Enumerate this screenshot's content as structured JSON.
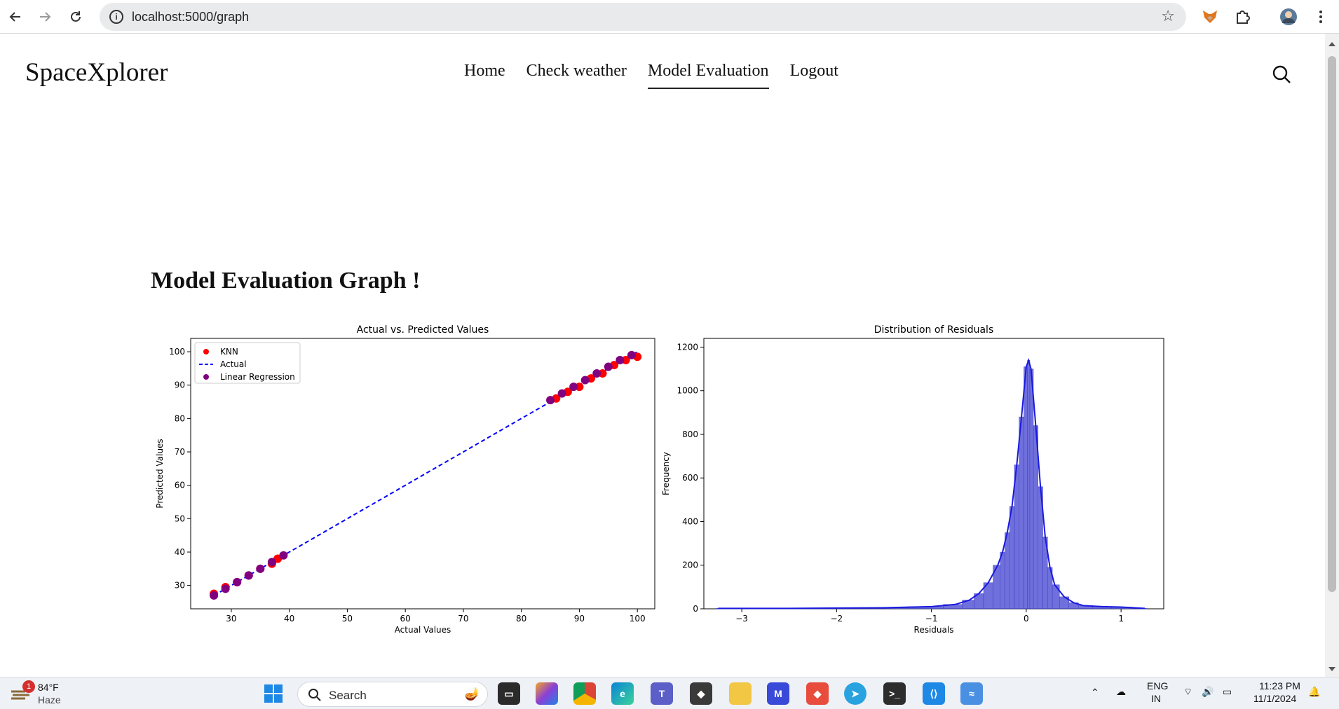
{
  "browser": {
    "url": "localhost:5000/graph"
  },
  "site": {
    "logo": "SpaceXplorer",
    "menu": [
      {
        "label": "Home",
        "active": false
      },
      {
        "label": "Check weather",
        "active": false
      },
      {
        "label": "Model Evaluation",
        "active": true
      },
      {
        "label": "Logout",
        "active": false
      }
    ]
  },
  "page": {
    "heading": "Model Evaluation Graph !"
  },
  "chart_data": [
    {
      "type": "scatter",
      "title": "Actual vs. Predicted Values",
      "xlabel": "Actual Values",
      "ylabel": "Predicted Values",
      "xlim": [
        23,
        103
      ],
      "ylim": [
        23,
        104
      ],
      "xticks": [
        30,
        40,
        50,
        60,
        70,
        80,
        90,
        100
      ],
      "yticks": [
        30,
        40,
        50,
        60,
        70,
        80,
        90,
        100
      ],
      "legend_position": "upper-left",
      "series": [
        {
          "name": "KNN",
          "kind": "scatter",
          "color": "#ff0000",
          "x": [
            27,
            29,
            31,
            33,
            35,
            37,
            38,
            86,
            88,
            90,
            92,
            94,
            96,
            98,
            100
          ],
          "y": [
            27.5,
            29.5,
            31,
            33,
            35,
            36.5,
            38,
            86,
            88,
            89.5,
            92,
            93.5,
            96,
            97.5,
            98.5
          ]
        },
        {
          "name": "Actual",
          "kind": "line",
          "style": "dashed",
          "color": "#0000ff",
          "x": [
            27,
            100
          ],
          "y": [
            27,
            100
          ]
        },
        {
          "name": "Linear Regression",
          "kind": "scatter",
          "color": "#800080",
          "x": [
            27,
            29,
            31,
            33,
            35,
            37,
            39,
            85,
            87,
            89,
            91,
            93,
            95,
            97,
            99
          ],
          "y": [
            27,
            29,
            31,
            33,
            35,
            37,
            39,
            85.5,
            87.5,
            89.5,
            91.5,
            93.5,
            95.5,
            97.5,
            99
          ]
        }
      ]
    },
    {
      "type": "bar",
      "title": "Distribution of Residuals",
      "xlabel": "Residuals",
      "ylabel": "Frequency",
      "xlim": [
        -3.4,
        1.45
      ],
      "ylim": [
        0,
        1240
      ],
      "xticks": [
        -3,
        -2,
        -1,
        0,
        1
      ],
      "xtick_labels": [
        "−3",
        "−2",
        "−1",
        "0",
        "1"
      ],
      "yticks": [
        0,
        200,
        400,
        600,
        800,
        1000,
        1200
      ],
      "color": "#4040d0",
      "x": [
        -3.25,
        -2.5,
        -1.5,
        -1.0,
        -0.75,
        -0.6,
        -0.5,
        -0.4,
        -0.3,
        -0.25,
        -0.2,
        -0.15,
        -0.1,
        -0.05,
        0.0,
        0.025,
        0.05,
        0.1,
        0.15,
        0.2,
        0.25,
        0.3,
        0.4,
        0.5,
        0.6,
        0.8,
        1.0,
        1.25
      ],
      "values": [
        2,
        2,
        5,
        10,
        20,
        40,
        70,
        120,
        200,
        260,
        350,
        470,
        660,
        880,
        1110,
        1140,
        1100,
        840,
        560,
        330,
        190,
        110,
        55,
        28,
        15,
        10,
        8,
        2
      ]
    }
  ]
}
